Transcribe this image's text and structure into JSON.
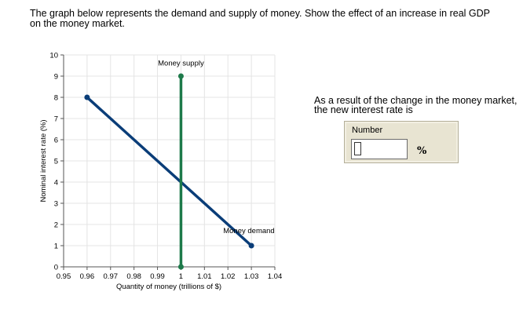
{
  "question": "The graph below represents the demand and supply of money. Show the effect of an increase in real GDP on the money market.",
  "answer": {
    "prompt": "As a result of the change in the money market, the new interest rate is",
    "label": "Number",
    "value": "",
    "unit": "%"
  },
  "colors": {
    "demand": "#0a3d78",
    "supply": "#1d7a4a",
    "grid": "#e4e4e4",
    "axis": "#555555"
  },
  "chart_data": {
    "type": "line",
    "xlabel": "Quantity of money (trillions of $)",
    "ylabel": "Nominal interest rate (%)",
    "xlim": [
      0.95,
      1.04
    ],
    "ylim": [
      0,
      10
    ],
    "x_ticks": [
      "0.95",
      "0.96",
      "0.97",
      "0.98",
      "0.99",
      "1",
      "1.01",
      "1.02",
      "1.03",
      "1.04"
    ],
    "y_ticks": [
      "0",
      "1",
      "2",
      "3",
      "4",
      "5",
      "6",
      "7",
      "8",
      "9",
      "10"
    ],
    "grid": true,
    "series": [
      {
        "name": "Money demand",
        "x": [
          0.96,
          1.03
        ],
        "y": [
          8,
          1
        ],
        "color": "#0a3d78",
        "endpoints": true
      },
      {
        "name": "Money supply",
        "x": [
          1,
          1
        ],
        "y": [
          0,
          9
        ],
        "color": "#1d7a4a",
        "endpoints": true
      }
    ],
    "annotations": [
      {
        "text": "Money supply",
        "x": 1,
        "y": 9.5,
        "anchor": "middle"
      },
      {
        "text": "Money demand",
        "x": 1.018,
        "y": 1.6,
        "anchor": "start"
      }
    ]
  }
}
